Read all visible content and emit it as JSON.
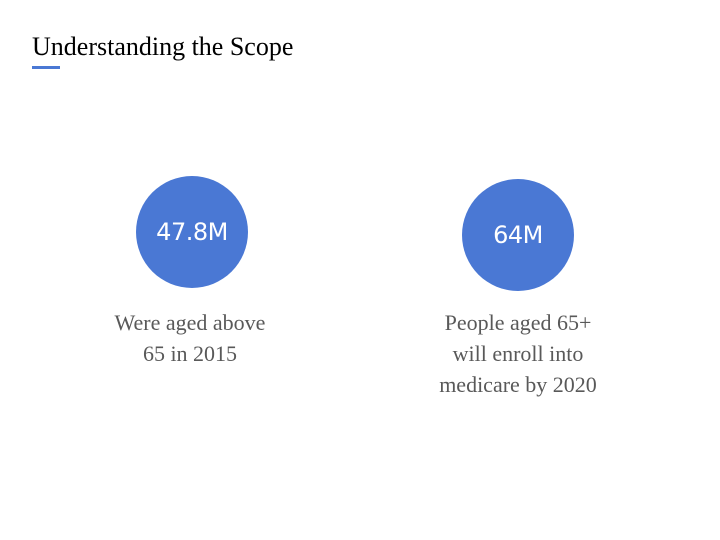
{
  "slide": {
    "title": "Understanding the Scope",
    "accent_color": "#4a78d4"
  },
  "stats": [
    {
      "value": "47.8M",
      "caption": "Were aged above\n65 in 2015",
      "circle_color": "#4a78d4"
    },
    {
      "value": "64M",
      "caption": "People aged 65+\nwill enroll into\nmedicare by 2020",
      "circle_color": "#4a78d4"
    }
  ]
}
